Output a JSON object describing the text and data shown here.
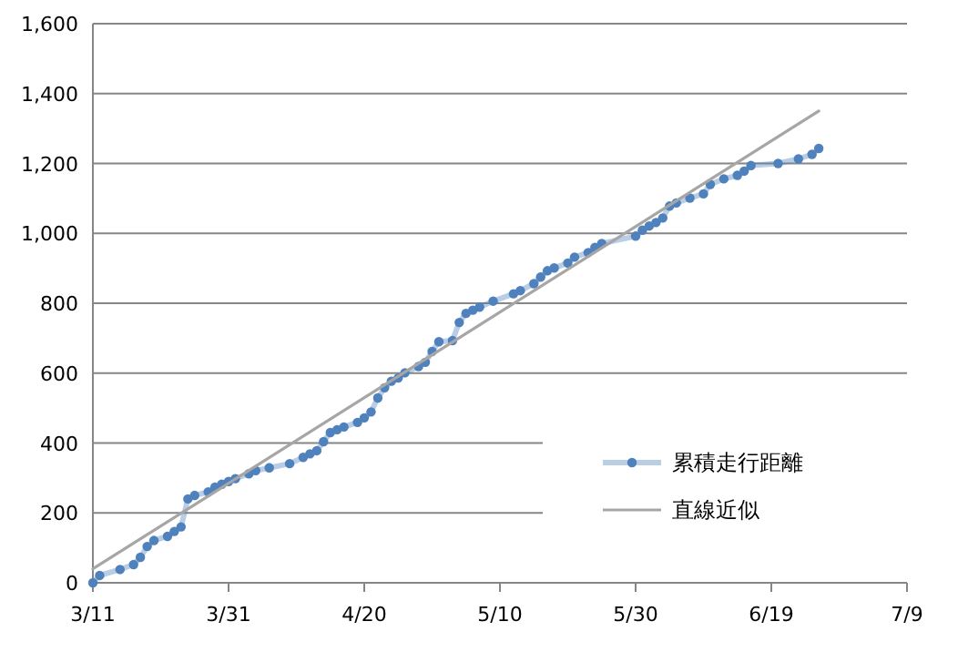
{
  "chart_data": {
    "type": "line",
    "x": [
      "--03-11",
      "--03-12",
      "--03-15",
      "--03-17",
      "--03-18",
      "--03-19",
      "--03-20",
      "--03-22",
      "--03-23",
      "--03-24",
      "--03-25",
      "--03-26",
      "--03-28",
      "--03-29",
      "--03-30",
      "--03-31",
      "--04-01",
      "--04-03",
      "--04-04",
      "--04-06",
      "--04-09",
      "--04-11",
      "--04-12",
      "--04-13",
      "--04-14",
      "--04-15",
      "--04-16",
      "--04-17",
      "--04-19",
      "--04-20",
      "--04-21",
      "--04-22",
      "--04-23",
      "--04-24",
      "--04-25",
      "--04-26",
      "--04-28",
      "--04-29",
      "--04-30",
      "--05-01",
      "--05-03",
      "--05-04",
      "--05-05",
      "--05-06",
      "--05-07",
      "--05-09",
      "--05-12",
      "--05-13",
      "--05-15",
      "--05-16",
      "--05-17",
      "--05-18",
      "--05-20",
      "--05-21",
      "--05-23",
      "--05-24",
      "--05-25",
      "--05-30",
      "--05-31",
      "--06-01",
      "--06-02",
      "--06-03",
      "--06-04",
      "--06-05",
      "--06-07",
      "--06-09",
      "--06-10",
      "--06-12",
      "--06-14",
      "--06-15",
      "--06-16",
      "--06-20",
      "--06-23",
      "--06-25",
      "--06-26"
    ],
    "series": [
      {
        "name": "累積走行距離",
        "color": "#4f81bd",
        "marker": "circle",
        "line_style": "solid",
        "values": [
          0,
          21,
          38,
          52,
          73,
          104,
          121,
          133,
          147,
          160,
          240,
          250,
          260,
          274,
          282,
          290,
          298,
          312,
          321,
          329,
          341,
          359,
          369,
          378,
          404,
          430,
          438,
          446,
          459,
          472,
          489,
          529,
          558,
          577,
          586,
          601,
          619,
          631,
          662,
          690,
          693,
          745,
          771,
          780,
          789,
          806,
          827,
          836,
          856,
          875,
          893,
          901,
          915,
          932,
          945,
          960,
          971,
          992,
          1009,
          1021,
          1031,
          1044,
          1078,
          1087,
          1101,
          1113,
          1140,
          1156,
          1166,
          1178,
          1194,
          1200,
          1213,
          1226,
          1243
        ]
      },
      {
        "name": "直線近似",
        "color": "#a6a6a6",
        "marker": "none",
        "line_style": "solid",
        "x": [
          "--03-11",
          "--06-26"
        ],
        "values": [
          40,
          1350
        ]
      }
    ],
    "xlim": [
      "--03-11",
      "--07-09"
    ],
    "xticks": [
      {
        "value": "--03-11",
        "label": "3/11"
      },
      {
        "value": "--03-31",
        "label": "3/31"
      },
      {
        "value": "--04-20",
        "label": "4/20"
      },
      {
        "value": "--05-10",
        "label": "5/10"
      },
      {
        "value": "--05-30",
        "label": "5/30"
      },
      {
        "value": "--06-19",
        "label": "6/19"
      },
      {
        "value": "--07-09",
        "label": "7/9"
      }
    ],
    "ylim": [
      0,
      1600
    ],
    "yticks": [
      0,
      200,
      400,
      600,
      800,
      {
        "value": 1000,
        "label": "1,000"
      },
      {
        "value": 1200,
        "label": "1,200"
      },
      {
        "value": 1400,
        "label": "1,400"
      },
      {
        "value": 1600,
        "label": "1,600"
      }
    ],
    "grid": "y",
    "legend": "bottom right"
  }
}
